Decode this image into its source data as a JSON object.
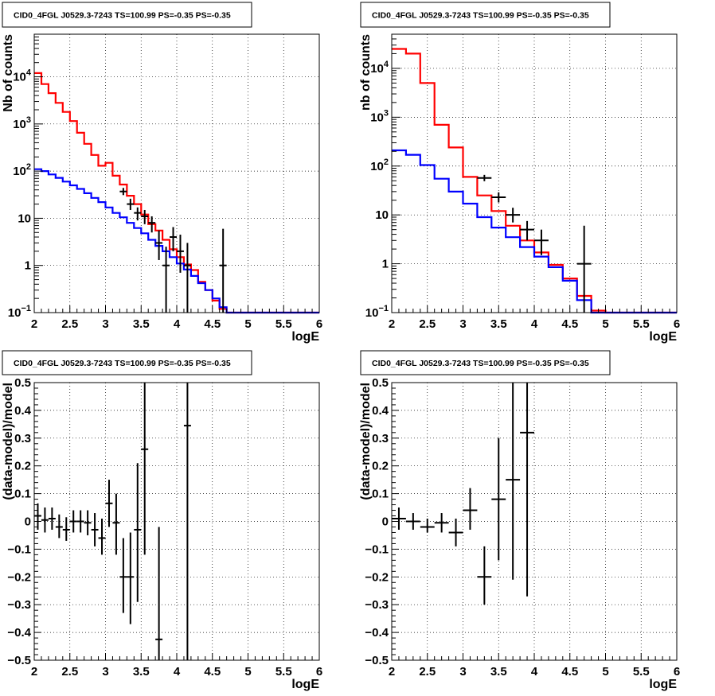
{
  "chart_data": [
    {
      "type": "line",
      "title": "CID0_4FGL J0529.3-7243 TS=100.99 PS=-0.35 PS=-0.35",
      "xlabel": "logE",
      "ylabel": "Nb of counts",
      "xlim": [
        2,
        6
      ],
      "ylim": [
        0.1,
        80000
      ],
      "yscale": "log",
      "grid": true,
      "xticks": [
        2,
        2.5,
        3,
        3.5,
        4,
        4.5,
        5,
        5.5,
        6
      ],
      "xtick_labels": [
        "2",
        "2.5",
        "3",
        "3.5",
        "4",
        "4.5",
        "5",
        "5.5",
        "6"
      ],
      "yticks": [
        0.1,
        1,
        10,
        100,
        1000,
        10000
      ],
      "ytick_labels": [
        "10⁻¹",
        "1",
        "10",
        "10²",
        "10³",
        "10⁴"
      ],
      "bin_width": 0.1,
      "series": [
        {
          "kind": "step",
          "color": "#ff0000",
          "x": [
            2.0,
            2.1,
            2.2,
            2.3,
            2.4,
            2.5,
            2.6,
            2.7,
            2.8,
            2.9,
            3.0,
            3.1,
            3.2,
            3.3,
            3.4,
            3.5,
            3.6,
            3.7,
            3.8,
            3.9,
            4.0,
            4.1,
            4.2,
            4.3,
            4.4,
            4.5,
            4.6,
            4.7,
            4.8,
            4.9,
            5.0,
            5.1,
            5.2,
            5.3,
            5.4,
            5.5,
            5.6,
            5.7,
            5.8,
            5.9
          ],
          "values": [
            12000,
            7000,
            4500,
            2800,
            1800,
            1150,
            650,
            380,
            220,
            130,
            150,
            80,
            52,
            30,
            20,
            12,
            7.5,
            5.5,
            3.5,
            2.2,
            1.5,
            1.05,
            0.8,
            0.45,
            0.3,
            0.18,
            0.12,
            0.1,
            0.1,
            0.1,
            0.1,
            0.1,
            0.1,
            0.1,
            0.1,
            0.1,
            0.1,
            0.1,
            0.1,
            0.1
          ]
        },
        {
          "kind": "step",
          "color": "#0000ff",
          "x": [
            2.0,
            2.1,
            2.2,
            2.3,
            2.4,
            2.5,
            2.6,
            2.7,
            2.8,
            2.9,
            3.0,
            3.1,
            3.2,
            3.3,
            3.4,
            3.5,
            3.6,
            3.7,
            3.8,
            3.9,
            4.0,
            4.1,
            4.2,
            4.3,
            4.4,
            4.5,
            4.6,
            4.7,
            4.8,
            4.9,
            5.0,
            5.1,
            5.2,
            5.3,
            5.4,
            5.5,
            5.6,
            5.7,
            5.8,
            5.9
          ],
          "values": [
            110,
            100,
            85,
            72,
            60,
            50,
            42,
            34,
            27,
            22,
            17,
            13,
            10.5,
            8,
            6.2,
            4.8,
            3.5,
            2.6,
            2,
            1.5,
            1.1,
            0.82,
            0.6,
            0.42,
            0.3,
            0.2,
            0.13,
            0.1,
            0.1,
            0.1,
            0.1,
            0.1,
            0.1,
            0.1,
            0.1,
            0.1,
            0.1,
            0.1,
            0.1,
            0.1
          ]
        },
        {
          "kind": "points",
          "color": "#000000",
          "x": [
            3.25,
            3.35,
            3.45,
            3.55,
            3.65,
            3.75,
            3.85,
            3.95,
            4.05,
            4.15,
            4.65
          ],
          "values": [
            37,
            20,
            13,
            11,
            8,
            3,
            1,
            4,
            2,
            1,
            1
          ],
          "err_low": [
            31,
            15,
            9,
            7.5,
            5,
            1.3,
            0.1,
            2,
            0.7,
            0.1,
            0.1
          ],
          "err_high": [
            44,
            26,
            17,
            15,
            11,
            5.5,
            2.5,
            6.5,
            4.5,
            3,
            6
          ]
        }
      ]
    },
    {
      "type": "line",
      "title": "CID0_4FGL J0529.3-7243 TS=100.99 PS=-0.35 PS=-0.35",
      "xlabel": "logE",
      "ylabel": "nb of counts",
      "xlim": [
        2,
        6
      ],
      "ylim": [
        0.1,
        50000
      ],
      "yscale": "log",
      "grid": true,
      "xticks": [
        2,
        2.5,
        3,
        3.5,
        4,
        4.5,
        5,
        5.5,
        6
      ],
      "xtick_labels": [
        "2",
        "2.5",
        "3",
        "3.5",
        "4",
        "4.5",
        "5",
        "5.5",
        "6"
      ],
      "yticks": [
        0.1,
        1,
        10,
        100,
        1000,
        10000
      ],
      "ytick_labels": [
        "10⁻¹",
        "1",
        "10",
        "10²",
        "10³",
        "10⁴"
      ],
      "bin_width": 0.2,
      "series": [
        {
          "kind": "step",
          "color": "#ff0000",
          "x": [
            2.0,
            2.2,
            2.4,
            2.6,
            2.8,
            3.0,
            3.2,
            3.4,
            3.6,
            3.8,
            4.0,
            4.2,
            4.4,
            4.6,
            4.8,
            5.0,
            5.2,
            5.4,
            5.6,
            5.8
          ],
          "values": [
            25000,
            20000,
            5000,
            700,
            240,
            60,
            25,
            12,
            6,
            3,
            1.7,
            0.95,
            0.5,
            0.22,
            0.11,
            0.1,
            0.1,
            0.1,
            0.1,
            0.1
          ]
        },
        {
          "kind": "step",
          "color": "#0000ff",
          "x": [
            2.0,
            2.2,
            2.4,
            2.6,
            2.8,
            3.0,
            3.2,
            3.4,
            3.6,
            3.8,
            4.0,
            4.2,
            4.4,
            4.6,
            4.8,
            5.0,
            5.2,
            5.4,
            5.6,
            5.8
          ],
          "values": [
            210,
            170,
            105,
            55,
            30,
            17,
            9,
            5.5,
            3.5,
            2.2,
            1.4,
            0.85,
            0.45,
            0.18,
            0.1,
            0.1,
            0.1,
            0.1,
            0.1,
            0.1
          ]
        },
        {
          "kind": "points",
          "color": "#000000",
          "x": [
            3.3,
            3.5,
            3.7,
            3.9,
            4.1,
            4.7
          ],
          "values": [
            57,
            23,
            10,
            5,
            3,
            1
          ],
          "err_low": [
            49,
            18,
            7,
            3,
            1.5,
            0.1
          ],
          "err_high": [
            66,
            29,
            14,
            7.5,
            5,
            6
          ]
        }
      ]
    },
    {
      "type": "scatter",
      "title": "CID0_4FGL J0529.3-7243 TS=100.99 PS=-0.35 PS=-0.35",
      "xlabel": "logE",
      "ylabel": "(data-model)/model",
      "xlim": [
        2,
        6
      ],
      "ylim": [
        -0.5,
        0.5
      ],
      "grid": true,
      "xticks": [
        2,
        2.5,
        3,
        3.5,
        4,
        4.5,
        5,
        5.5,
        6
      ],
      "xtick_labels": [
        "2",
        "2.5",
        "3",
        "3.5",
        "4",
        "4.5",
        "5",
        "5.5",
        "6"
      ],
      "yticks": [
        -0.5,
        -0.4,
        -0.3,
        -0.2,
        -0.1,
        0,
        0.1,
        0.2,
        0.3,
        0.4,
        0.5
      ],
      "ytick_labels": [
        "−0.5",
        "−0.4",
        "−0.3",
        "−0.2",
        "−0.1",
        "0",
        "0.1",
        "0.2",
        "0.3",
        "0.4",
        "0.5"
      ],
      "bin_width": 0.1,
      "series": [
        {
          "kind": "points",
          "color": "#000000",
          "x": [
            2.05,
            2.15,
            2.25,
            2.35,
            2.45,
            2.55,
            2.65,
            2.75,
            2.85,
            2.95,
            3.05,
            3.15,
            3.25,
            3.35,
            3.45,
            3.55,
            3.75,
            4.15
          ],
          "values": [
            0.02,
            0.005,
            0.01,
            -0.02,
            -0.03,
            0,
            0,
            -0.005,
            -0.03,
            -0.06,
            0.065,
            -0.005,
            -0.2,
            -0.2,
            -0.03,
            0.26,
            -0.425,
            0.345
          ],
          "err_low": [
            -0.03,
            -0.04,
            -0.03,
            -0.06,
            -0.07,
            -0.04,
            -0.04,
            -0.05,
            -0.09,
            -0.12,
            -0.02,
            -0.12,
            -0.33,
            -0.37,
            -0.29,
            -0.12,
            -0.5,
            -0.5
          ],
          "err_high": [
            0.065,
            0.05,
            0.05,
            0.025,
            0.015,
            0.04,
            0.04,
            0.04,
            0.03,
            0.01,
            0.15,
            0.1,
            -0.06,
            -0.04,
            0.21,
            0.5,
            -0.02,
            0.5
          ]
        }
      ]
    },
    {
      "type": "scatter",
      "title": "CID0_4FGL J0529.3-7243 TS=100.99 PS=-0.35 PS=-0.35",
      "xlabel": "logE",
      "ylabel": "(data-model)/model",
      "xlim": [
        2,
        6
      ],
      "ylim": [
        -0.5,
        0.5
      ],
      "grid": true,
      "xticks": [
        2,
        2.5,
        3,
        3.5,
        4,
        4.5,
        5,
        5.5,
        6
      ],
      "xtick_labels": [
        "2",
        "2.5",
        "3",
        "3.5",
        "4",
        "4.5",
        "5",
        "5.5",
        "6"
      ],
      "yticks": [
        -0.5,
        -0.4,
        -0.3,
        -0.2,
        -0.1,
        0,
        0.1,
        0.2,
        0.3,
        0.4,
        0.5
      ],
      "ytick_labels": [
        "−0.5",
        "−0.4",
        "−0.3",
        "−0.2",
        "−0.1",
        "0",
        "0.1",
        "0.2",
        "0.3",
        "0.4",
        "0.5"
      ],
      "bin_width": 0.2,
      "series": [
        {
          "kind": "points",
          "color": "#000000",
          "x": [
            2.1,
            2.3,
            2.5,
            2.7,
            2.9,
            3.1,
            3.3,
            3.5,
            3.7,
            3.9
          ],
          "values": [
            0.01,
            0,
            -0.02,
            -0.005,
            -0.04,
            0.04,
            -0.2,
            0.08,
            0.15,
            0.32
          ],
          "err_low": [
            -0.03,
            -0.03,
            -0.04,
            -0.04,
            -0.09,
            -0.03,
            -0.3,
            -0.14,
            -0.21,
            -0.27
          ],
          "err_high": [
            0.05,
            0.03,
            0.01,
            0.03,
            0.01,
            0.12,
            -0.09,
            0.3,
            0.5,
            0.5
          ]
        }
      ]
    }
  ]
}
